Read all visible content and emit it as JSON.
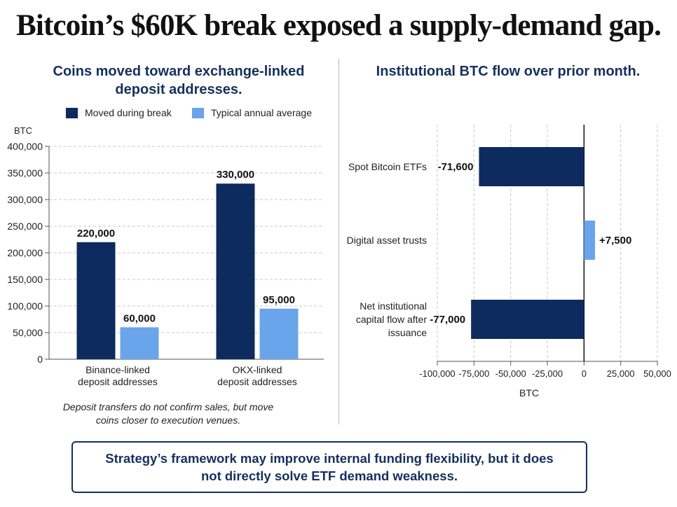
{
  "headline": "Bitcoin’s $60K break exposed a supply-demand gap.",
  "colors": {
    "dark": "#0d2b5e",
    "light": "#6aa4ea",
    "title": "#15305e"
  },
  "chart_data": [
    {
      "type": "bar",
      "title": "Coins moved toward exchange-linked deposit addresses.",
      "title_lines": [
        "Coins moved toward exchange-linked",
        "deposit addresses."
      ],
      "ylabel": "BTC",
      "ylim": [
        0,
        400000
      ],
      "yticks": [
        0,
        50000,
        100000,
        150000,
        200000,
        250000,
        300000,
        350000,
        400000
      ],
      "ytick_labels": [
        "0",
        "50,000",
        "100,000",
        "150,000",
        "200,000",
        "250,000",
        "300,000",
        "350,000",
        "400,000"
      ],
      "categories": [
        "Binance-linked deposit addresses",
        "OKX-linked deposit addresses"
      ],
      "category_lines": [
        [
          "Binance-linked",
          "deposit addresses"
        ],
        [
          "OKX-linked",
          "deposit addresses"
        ]
      ],
      "series": [
        {
          "name": "Moved during break",
          "color": "#0d2b5e",
          "values": [
            220000,
            330000
          ],
          "labels": [
            "220,000",
            "330,000"
          ]
        },
        {
          "name": "Typical annual average",
          "color": "#6aa4ea",
          "values": [
            60000,
            95000
          ],
          "labels": [
            "60,000",
            "95,000"
          ]
        }
      ],
      "grid": true,
      "legend_position": "top",
      "note_lines": [
        "Deposit transfers do not confirm sales, but move",
        "coins closer to execution venues."
      ]
    },
    {
      "type": "bar",
      "orientation": "horizontal",
      "title": "Institutional BTC flow over prior month.",
      "xlabel": "BTC",
      "xlim": [
        -100000,
        50000
      ],
      "xticks": [
        -100000,
        -75000,
        -50000,
        -25000,
        0,
        25000,
        50000
      ],
      "xtick_labels": [
        "-100,000",
        "-75,000",
        "-50,000",
        "-25,000",
        "0",
        "25,000",
        "50,000"
      ],
      "categories": [
        "Spot Bitcoin ETFs",
        "Digital asset trusts",
        "Net institutional capital flow after issuance"
      ],
      "category_lines": [
        [
          "Spot Bitcoin ETFs"
        ],
        [
          "Digital asset trusts"
        ],
        [
          "Net institutional",
          "capital flow after",
          "issuance"
        ]
      ],
      "values": [
        -71600,
        7500,
        -77000
      ],
      "labels": [
        "-71,600",
        "+7,500",
        "-77,000"
      ],
      "bar_colors": [
        "#0d2b5e",
        "#6aa4ea",
        "#0d2b5e"
      ],
      "grid": true
    }
  ],
  "callout_text": "Strategy’s framework may improve internal funding flexibility, but it does not directly solve ETF demand weakness."
}
